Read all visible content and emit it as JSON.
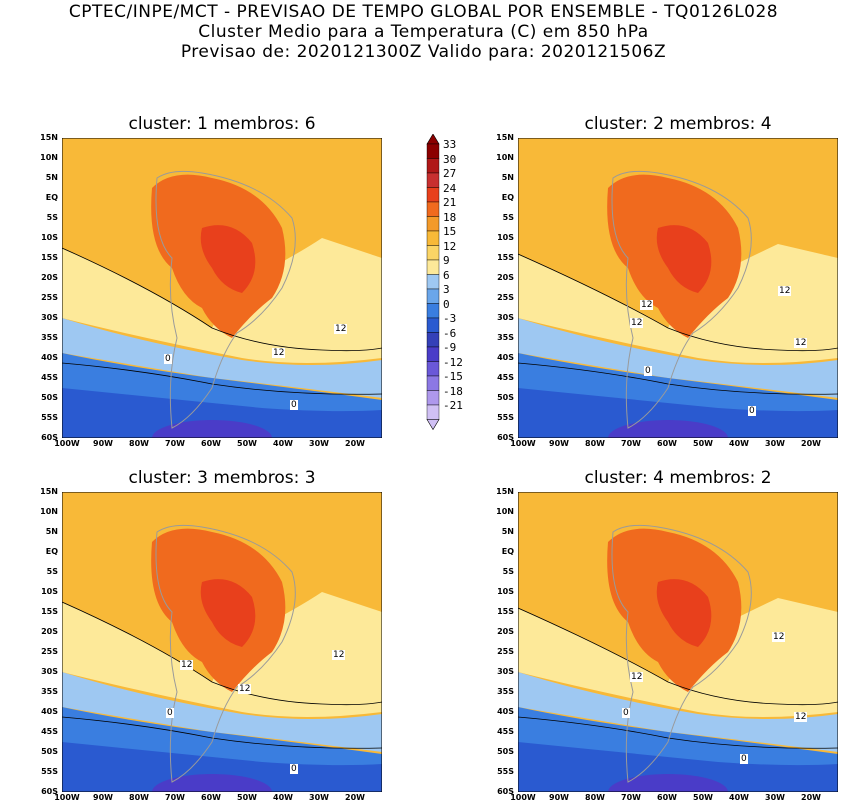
{
  "header": {
    "line1": "CPTEC/INPE/MCT - PREVISAO DE TEMPO GLOBAL POR ENSEMBLE - TQ0126L028",
    "line2": "Cluster Medio para a Temperatura (C) em 850 hPa",
    "line3": "Previsao de: 2020121300Z   Valido para: 2020121506Z"
  },
  "panels": [
    {
      "title": "cluster: 1   membros: 6",
      "contours": [
        "12",
        "12",
        "0",
        "0"
      ]
    },
    {
      "title": "cluster: 2   membros: 4",
      "contours": [
        "12",
        "12",
        "12",
        "12",
        "0",
        "0"
      ]
    },
    {
      "title": "cluster: 3   membros: 3",
      "contours": [
        "12",
        "12",
        "12",
        "0",
        "0"
      ]
    },
    {
      "title": "cluster: 4   membros: 2",
      "contours": [
        "12",
        "12",
        "12",
        "0",
        "0"
      ]
    }
  ],
  "lat_labels": [
    "15N",
    "10N",
    "5N",
    "EQ",
    "5S",
    "10S",
    "15S",
    "20S",
    "25S",
    "30S",
    "35S",
    "40S",
    "45S",
    "50S",
    "55S",
    "60S"
  ],
  "lon_labels": [
    "100W",
    "90W",
    "80W",
    "70W",
    "60W",
    "50W",
    "40W",
    "30W",
    "20W"
  ],
  "colorbar": {
    "levels": [
      "33",
      "30",
      "27",
      "24",
      "21",
      "18",
      "15",
      "12",
      "9",
      "6",
      "3",
      "0",
      "-3",
      "-6",
      "-9",
      "-12",
      "-15",
      "-18",
      "-21"
    ],
    "colors": [
      "#8b0000",
      "#b01818",
      "#c83030",
      "#e8401c",
      "#f06a1e",
      "#f39a2a",
      "#f8b938",
      "#fbd566",
      "#fde999",
      "#9ec8f2",
      "#6aa6ea",
      "#3a7ee0",
      "#2a5ad0",
      "#3440b8",
      "#4a3cc8",
      "#6a58d8",
      "#8c78e4",
      "#ae98ec",
      "#d0c0f4"
    ]
  }
}
